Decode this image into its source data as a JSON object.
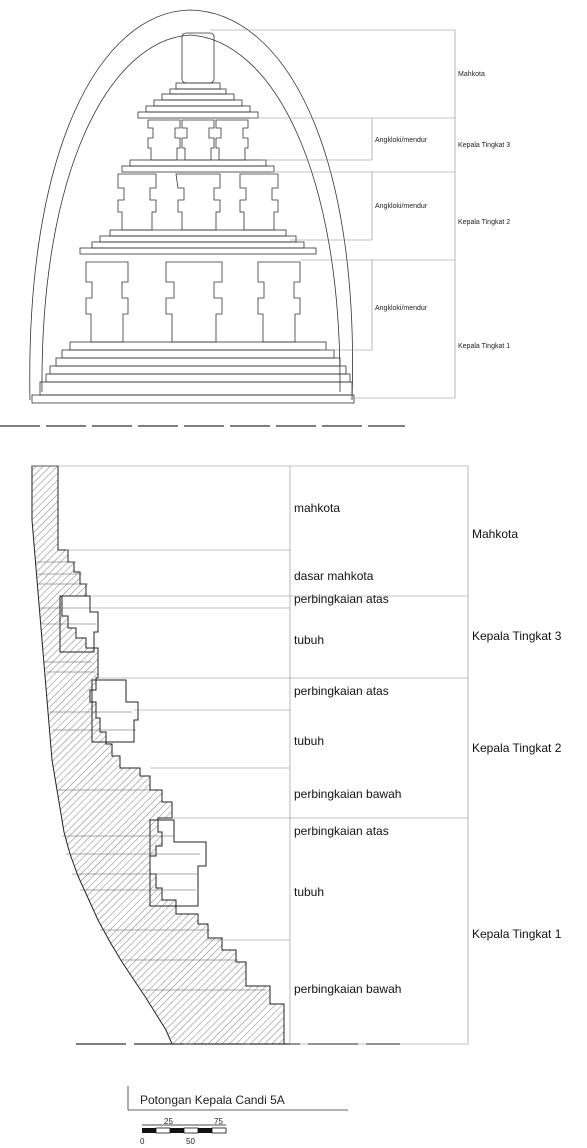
{
  "elevation": {
    "labels": {
      "crown": "Mahkota",
      "head3": "Kepala Tingkat 3",
      "head2": "Kepala Tingkat 2",
      "head1": "Kepala Tingkat 1",
      "ornament3": "Angkloki/mendur",
      "ornament2": "Angkloki/mendur",
      "ornament1": "Angkloki/mendur"
    }
  },
  "section": {
    "part_labels": {
      "p1": "mahkota",
      "p2": "dasar mahkota",
      "p3": "perbingkaian atas",
      "p4": "tubuh",
      "p5": "perbingkaian atas",
      "p6": "tubuh",
      "p7": "perbingkaian bawah",
      "p8": "perbingkaian atas",
      "p9": "tubuh",
      "p10": "perbingkaian bawah"
    },
    "group_labels": {
      "crown": "Mahkota",
      "head3": "Kepala Tingkat 3",
      "head2": "Kepala Tingkat 2",
      "head1": "Kepala Tingkat 1"
    }
  },
  "caption": {
    "title": "Potongan Kepala Candi 5A",
    "scale_ticks": [
      "0",
      "25",
      "50",
      "75"
    ]
  }
}
